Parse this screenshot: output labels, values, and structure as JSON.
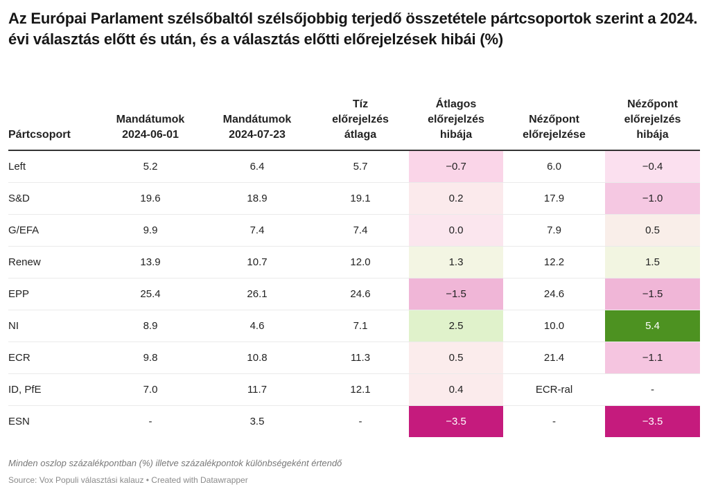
{
  "title": "Az Európai Parlament szélsőbaltól szélsőjobbig terjedő összetétele pártcsoportok szerint a 2024. évi választás előtt és után, és a választás előtti előrejelzések hibái (%)",
  "chart_data": {
    "type": "table",
    "title": "Az Európai Parlament szélsőbaltól szélsőjobbig terjedő összetétele pártcsoportok szerint a 2024. évi választás előtt és után, és a választás előtti előrejelzések hibái (%)",
    "columns": [
      "Pártcsoport",
      "Mandátumok 2024-06-01",
      "Mandátumok 2024-07-23",
      "Tíz előrejelzés átlaga",
      "Átlagos előrejelzés hibája",
      "Nézőpont előrejelzése",
      "Nézőpont előrejelzés hibája"
    ],
    "heatmap_columns": [
      4,
      6
    ],
    "color_scale": {
      "negative": "#c51b7d",
      "neutral": "#f7f7f7",
      "positive": "#4d9221"
    },
    "rows": [
      {
        "group": "Left",
        "seats_0601": "5.2",
        "seats_0723": "6.4",
        "avg_forecast": "5.7",
        "avg_error": "−0.7",
        "avg_error_color": "#fad5e8",
        "nezopont": "6.0",
        "nezopont_error": "−0.4",
        "nezopont_error_color": "#fbe0ef"
      },
      {
        "group": "S&D",
        "seats_0601": "19.6",
        "seats_0723": "18.9",
        "avg_forecast": "19.1",
        "avg_error": "0.2",
        "avg_error_color": "#fbeaec",
        "nezopont": "17.9",
        "nezopont_error": "−1.0",
        "nezopont_error_color": "#f5c8e2"
      },
      {
        "group": "G/EFA",
        "seats_0601": "9.9",
        "seats_0723": "7.4",
        "avg_forecast": "7.4",
        "avg_error": "0.0",
        "avg_error_color": "#fbe6ee",
        "nezopont": "7.9",
        "nezopont_error": "0.5",
        "nezopont_error_color": "#f9eee9"
      },
      {
        "group": "Renew",
        "seats_0601": "13.9",
        "seats_0723": "10.7",
        "avg_forecast": "12.0",
        "avg_error": "1.3",
        "avg_error_color": "#f3f5e3",
        "nezopont": "12.2",
        "nezopont_error": "1.5",
        "nezopont_error_color": "#f2f5e1"
      },
      {
        "group": "EPP",
        "seats_0601": "25.4",
        "seats_0723": "26.1",
        "avg_forecast": "24.6",
        "avg_error": "−1.5",
        "avg_error_color": "#f0b6d7",
        "nezopont": "24.6",
        "nezopont_error": "−1.5",
        "nezopont_error_color": "#f0b6d7"
      },
      {
        "group": "NI",
        "seats_0601": "8.9",
        "seats_0723": "4.6",
        "avg_forecast": "7.1",
        "avg_error": "2.5",
        "avg_error_color": "#e0f2cb",
        "nezopont": "10.0",
        "nezopont_error": "5.4",
        "nezopont_error_color": "#4d9221"
      },
      {
        "group": "ECR",
        "seats_0601": "9.8",
        "seats_0723": "10.8",
        "avg_forecast": "11.3",
        "avg_error": "0.5",
        "avg_error_color": "#fbecec",
        "nezopont": "21.4",
        "nezopont_error": "−1.1",
        "nezopont_error_color": "#f5c5e0"
      },
      {
        "group": "ID, PfE",
        "seats_0601": "7.0",
        "seats_0723": "11.7",
        "avg_forecast": "12.1",
        "avg_error": "0.4",
        "avg_error_color": "#fbebec",
        "nezopont": "ECR-ral",
        "nezopont_error": "-",
        "nezopont_error_color": "#ffffff"
      },
      {
        "group": "ESN",
        "seats_0601": "-",
        "seats_0723": "3.5",
        "avg_forecast": "-",
        "avg_error": "−3.5",
        "avg_error_color": "#c51b7d",
        "nezopont": "-",
        "nezopont_error": "−3.5",
        "nezopont_error_color": "#c51b7d"
      }
    ]
  },
  "header": {
    "col0": "Pártcsoport",
    "col1_l1": "Mandátumok",
    "col1_l2": "2024-06-01",
    "col2_l1": "Mandátumok",
    "col2_l2": "2024-07-23",
    "col3_l1": "Tíz",
    "col3_l2": "előrejelzés",
    "col3_l3": "átlaga",
    "col4_l1": "Átlagos",
    "col4_l2": "előrejelzés",
    "col4_l3": "hibája",
    "col5_l1": "Nézőpont",
    "col5_l2": "előrejelzése",
    "col6_l1": "Nézőpont",
    "col6_l2": "előrejelzés",
    "col6_l3": "hibája"
  },
  "notes": "Minden oszlop százalékpontban (%) illetve százalékpontok különbségeként értendő",
  "source": "Source: Vox Populi választási kalauz • Created with Datawrapper"
}
